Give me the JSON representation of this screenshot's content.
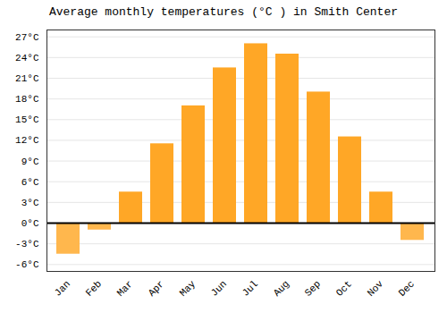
{
  "chart_data": {
    "type": "bar",
    "title": "Average monthly temperatures (°C ) in Smith Center",
    "categories": [
      "Jan",
      "Feb",
      "Mar",
      "Apr",
      "May",
      "Jun",
      "Jul",
      "Aug",
      "Sep",
      "Oct",
      "Nov",
      "Dec"
    ],
    "values": [
      -4.5,
      -1.0,
      4.5,
      11.5,
      17.0,
      22.5,
      26.0,
      24.5,
      19.0,
      12.5,
      4.5,
      -2.5
    ],
    "colors": [
      "#FFB74D",
      "#FFB74D",
      "#FFA726",
      "#FFA726",
      "#FFA726",
      "#FFA726",
      "#FFA726",
      "#FFA726",
      "#FFA726",
      "#FFA726",
      "#FFA726",
      "#FFB74D"
    ],
    "ylim": [
      -7,
      28
    ],
    "yticks": [
      {
        "value": -6,
        "label": "-6°C"
      },
      {
        "value": -3,
        "label": "-3°C"
      },
      {
        "value": 0,
        "label": "0°C"
      },
      {
        "value": 3,
        "label": "3°C"
      },
      {
        "value": 6,
        "label": "6°C"
      },
      {
        "value": 9,
        "label": "9°C"
      },
      {
        "value": 12,
        "label": "12°C"
      },
      {
        "value": 15,
        "label": "15°C"
      },
      {
        "value": 18,
        "label": "18°C"
      },
      {
        "value": 21,
        "label": "21°C"
      },
      {
        "value": 24,
        "label": "24°C"
      },
      {
        "value": 27,
        "label": "27°C"
      }
    ],
    "grid": true
  }
}
